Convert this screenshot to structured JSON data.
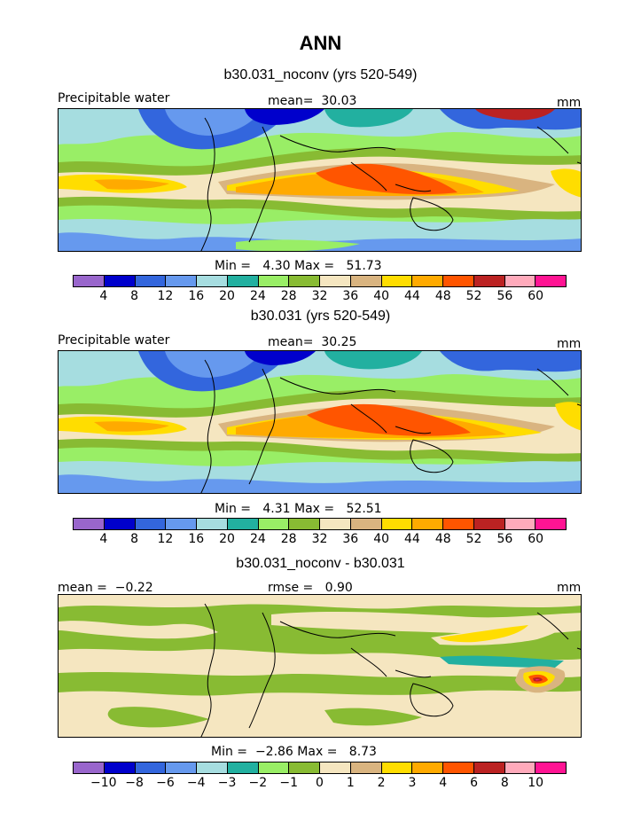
{
  "title": "ANN",
  "panels": [
    {
      "subtitle": "b30.031_noconv (yrs 520-549)",
      "variable": "Precipitable water",
      "stat_left_label": "",
      "stat_left_value": "",
      "stat_mid_label": "mean=",
      "stat_mid_value": "30.03",
      "units": "mm",
      "min_label": "Min =",
      "min_value": "4.30",
      "max_label": "Max =",
      "max_value": "51.73",
      "colorbar_ticks": [
        "4",
        "8",
        "12",
        "16",
        "20",
        "24",
        "28",
        "32",
        "36",
        "40",
        "44",
        "48",
        "52",
        "56",
        "60"
      ]
    },
    {
      "subtitle": "b30.031 (yrs 520-549)",
      "variable": "Precipitable water",
      "stat_left_label": "",
      "stat_left_value": "",
      "stat_mid_label": "mean=",
      "stat_mid_value": "30.25",
      "units": "mm",
      "min_label": "Min =",
      "min_value": "4.31",
      "max_label": "Max =",
      "max_value": "52.51",
      "colorbar_ticks": [
        "4",
        "8",
        "12",
        "16",
        "20",
        "24",
        "28",
        "32",
        "36",
        "40",
        "44",
        "48",
        "52",
        "56",
        "60"
      ]
    },
    {
      "subtitle": "b30.031_noconv - b30.031",
      "variable": "",
      "stat_left_label": "mean =",
      "stat_left_value": "−0.22",
      "stat_mid_label": "rmse =",
      "stat_mid_value": "0.90",
      "units": "mm",
      "min_label": "Min =",
      "min_value": "−2.86",
      "max_label": "Max =",
      "max_value": "8.73",
      "colorbar_ticks": [
        "−10",
        "−8",
        "−6",
        "−4",
        "−3",
        "−2",
        "−1",
        "0",
        "1",
        "2",
        "3",
        "4",
        "6",
        "8",
        "10"
      ]
    }
  ],
  "colorbar_colors": [
    "#9966cc",
    "#0000cc",
    "#3366dd",
    "#6699ee",
    "#a6dde0",
    "#22b0a0",
    "#99ee66",
    "#88bb33",
    "#f5e6c0",
    "#d9b480",
    "#ffdd00",
    "#ffaa00",
    "#ff5500",
    "#bb2222",
    "#ffaabb",
    "#ff1493"
  ],
  "map_colors": {
    "ocean_base": "#f5e6c0",
    "diff_base": "#88bb33",
    "land_outline": "#000000"
  }
}
